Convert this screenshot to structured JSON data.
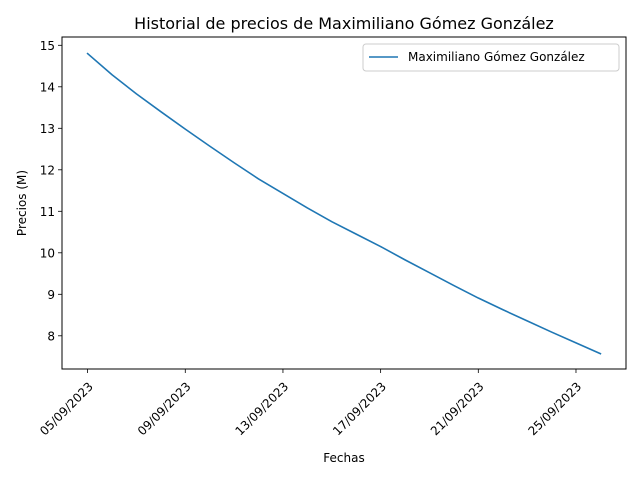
{
  "chart_data": {
    "type": "line",
    "title": "Historial de precios de Maximiliano Gómez González",
    "xlabel": "Fechas",
    "ylabel": "Precios (M)",
    "x": [
      "05/09/2023",
      "06/09/2023",
      "07/09/2023",
      "08/09/2023",
      "09/09/2023",
      "10/09/2023",
      "11/09/2023",
      "12/09/2023",
      "13/09/2023",
      "14/09/2023",
      "15/09/2023",
      "16/09/2023",
      "17/09/2023",
      "18/09/2023",
      "19/09/2023",
      "20/09/2023",
      "21/09/2023",
      "22/09/2023",
      "23/09/2023",
      "24/09/2023",
      "25/09/2023",
      "26/09/2023"
    ],
    "x_ticks": [
      "05/09/2023",
      "09/09/2023",
      "13/09/2023",
      "17/09/2023",
      "21/09/2023",
      "25/09/2023"
    ],
    "y_ticks": [
      8,
      9,
      10,
      11,
      12,
      13,
      14,
      15
    ],
    "ylim": [
      7.2,
      15.2
    ],
    "grid": false,
    "legend_position": "top-right",
    "series": [
      {
        "name": "Maximiliano Gómez González",
        "color": "#1f77b4",
        "values": [
          14.8,
          14.29,
          13.83,
          13.4,
          12.98,
          12.57,
          12.17,
          11.78,
          11.43,
          11.08,
          10.75,
          10.45,
          10.15,
          9.83,
          9.52,
          9.21,
          8.91,
          8.63,
          8.36,
          8.09,
          7.83,
          7.57
        ]
      }
    ]
  }
}
